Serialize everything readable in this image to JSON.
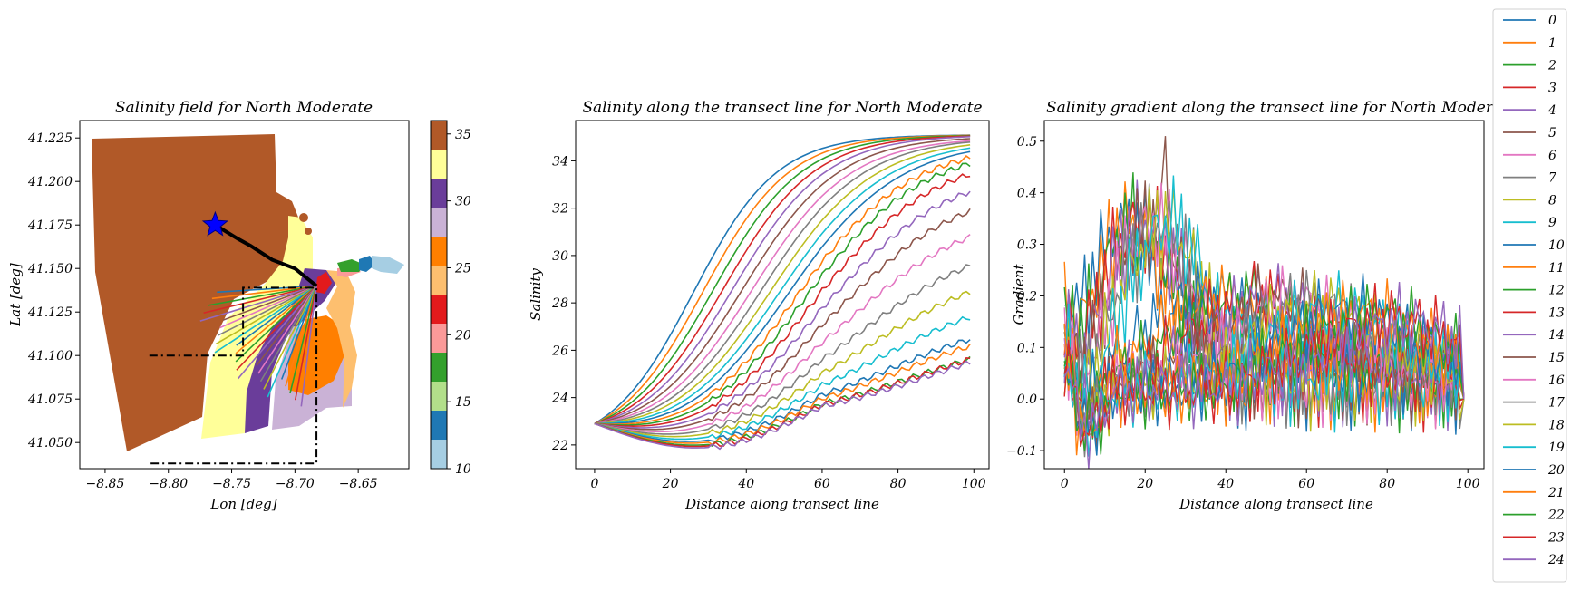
{
  "chart_data": [
    {
      "type": "scatter",
      "title": "Salinity field for North Moderate",
      "xlabel": "Lon [deg]",
      "ylabel": "Lat [deg]",
      "xlim": [
        -8.87,
        -8.61
      ],
      "ylim": [
        41.035,
        41.235
      ],
      "xticks": [
        -8.85,
        -8.8,
        -8.75,
        -8.7,
        -8.65
      ],
      "xtick_labels": [
        "−8.85",
        "−8.80",
        "−8.75",
        "−8.70",
        "−8.65"
      ],
      "yticks": [
        41.05,
        41.075,
        41.1,
        41.125,
        41.15,
        41.175,
        41.2,
        41.225
      ],
      "ytick_labels": [
        "41.050",
        "41.075",
        "41.100",
        "41.125",
        "41.150",
        "41.175",
        "41.200",
        "41.225"
      ],
      "colorbar": {
        "ticks": [
          10,
          15,
          20,
          25,
          30,
          35
        ],
        "tick_labels": [
          "10",
          "15",
          "20",
          "25",
          "30",
          "35"
        ],
        "range": [
          10,
          36
        ],
        "colors": [
          "#a6cee3",
          "#1f78b4",
          "#b2df8a",
          "#33a02c",
          "#fb9a99",
          "#e31a1c",
          "#fdbf6f",
          "#ff7f00",
          "#cab2d6",
          "#6a3d9a",
          "#ffff99",
          "#b15928"
        ]
      },
      "marker": {
        "lon": -8.763,
        "lat": 41.175,
        "symbol": "star",
        "color": "#0000ff"
      },
      "transect_origin": {
        "lon": -8.683,
        "lat": 41.14
      },
      "transect_line_count": 25,
      "box_dashdot_1": [
        [
          -8.815,
          41.1
        ],
        [
          -8.741,
          41.1
        ],
        [
          -8.741,
          41.139
        ],
        [
          -8.683,
          41.139
        ],
        [
          -8.683,
          41.038
        ],
        [
          -8.815,
          41.038
        ]
      ],
      "black_path": [
        [
          -8.763,
          41.175
        ],
        [
          -8.745,
          41.167
        ],
        [
          -8.735,
          41.163
        ],
        [
          -8.718,
          41.155
        ],
        [
          -8.7,
          41.15
        ],
        [
          -8.683,
          41.14
        ]
      ],
      "grid": false
    },
    {
      "type": "line",
      "title": "Salinity along the transect line for North Moderate",
      "xlabel": "Distance along transect line",
      "ylabel": "Salinity",
      "xlim": [
        -5,
        104
      ],
      "ylim": [
        21,
        35.7
      ],
      "xticks": [
        0,
        20,
        40,
        60,
        80,
        100
      ],
      "yticks": [
        22,
        24,
        26,
        28,
        30,
        32,
        34
      ],
      "series_count": 25,
      "start_value": 22.9,
      "end_values": [
        35.1,
        35.1,
        35.1,
        35.1,
        35.1,
        35.05,
        35.0,
        35.0,
        34.95,
        34.9,
        34.85,
        34.7,
        34.6,
        34.3,
        33.7,
        33.0,
        32.0,
        30.8,
        29.7,
        28.6,
        27.6,
        27.4,
        26.8,
        27.0,
        27.0
      ],
      "grid": false
    },
    {
      "type": "line",
      "title": "Salinity gradient along the transect line for North Moderate",
      "xlabel": "Distance along transect line",
      "ylabel": "Gradient",
      "xlim": [
        -5,
        104
      ],
      "ylim": [
        -0.135,
        0.54
      ],
      "xticks": [
        0,
        20,
        40,
        60,
        80,
        100
      ],
      "yticks": [
        -0.1,
        0.0,
        0.1,
        0.2,
        0.3,
        0.4,
        0.5
      ],
      "ytick_labels": [
        "−0.1",
        "0.0",
        "0.1",
        "0.2",
        "0.3",
        "0.4",
        "0.5"
      ],
      "series_count": 25,
      "peak_value": 0.51,
      "grid": false
    }
  ],
  "legend": {
    "placement": "right",
    "entries": [
      "0",
      "1",
      "2",
      "3",
      "4",
      "5",
      "6",
      "7",
      "8",
      "9",
      "10",
      "11",
      "12",
      "13",
      "14",
      "15",
      "16",
      "17",
      "18",
      "19",
      "20",
      "21",
      "22",
      "23",
      "24"
    ],
    "colors": [
      "#1f77b4",
      "#ff7f0e",
      "#2ca02c",
      "#d62728",
      "#9467bd",
      "#8c564b",
      "#e377c2",
      "#7f7f7f",
      "#bcbd22",
      "#17becf"
    ]
  }
}
